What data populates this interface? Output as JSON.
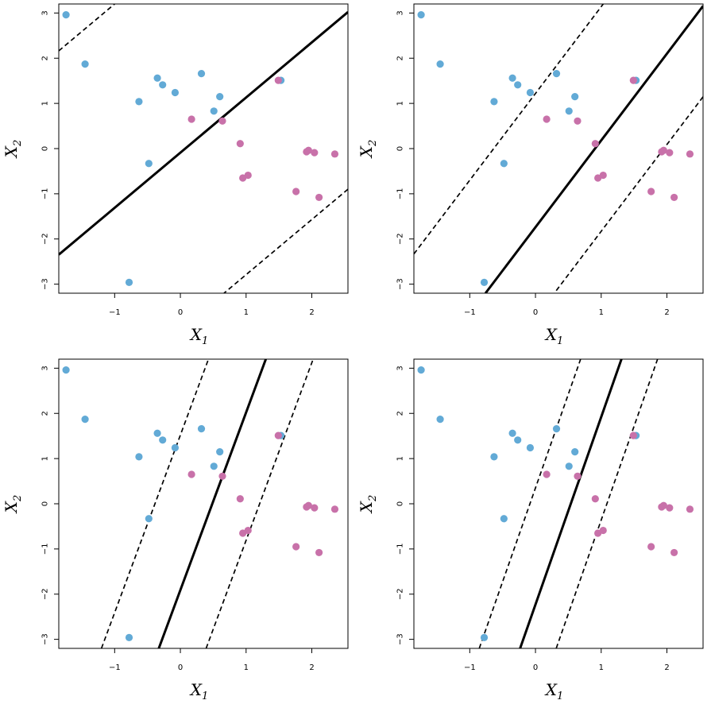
{
  "figure": {
    "xlabel_main": "X",
    "xlabel_sub": "1",
    "ylabel_main": "X",
    "ylabel_sub": "2"
  },
  "colors": {
    "class_blue": "#62aad6",
    "class_pink": "#c871a9",
    "lines": "#000000"
  },
  "chart_data": [
    {
      "type": "scatter",
      "xlim": [
        -1.85,
        2.55
      ],
      "ylim": [
        -3.2,
        3.2
      ],
      "xticks": [
        -1,
        0,
        1,
        2
      ],
      "yticks": [
        -3,
        -2,
        -1,
        0,
        1,
        2,
        3
      ],
      "grid": false,
      "hyperplane": {
        "intercept": -0.09,
        "slope": 1.22
      },
      "margins": [
        {
          "intercept": 4.42,
          "slope": 1.22
        },
        {
          "intercept": -4.01,
          "slope": 1.22
        }
      ],
      "series": [
        {
          "color": "blue",
          "x": [
            -1.74,
            -1.45,
            -0.63,
            -0.35,
            -0.27,
            -0.08,
            0.32,
            0.51,
            0.6,
            1.53,
            -0.48,
            -0.78
          ],
          "y": [
            2.96,
            1.87,
            1.04,
            1.56,
            1.41,
            1.24,
            1.66,
            0.83,
            1.15,
            1.51,
            -0.33,
            -2.96
          ]
        },
        {
          "color": "pink",
          "x": [
            0.17,
            0.64,
            0.91,
            1.49,
            1.92,
            1.95,
            2.04,
            2.35,
            0.95,
            1.03,
            1.76,
            2.11
          ],
          "y": [
            0.65,
            0.61,
            0.11,
            1.51,
            -0.07,
            -0.04,
            -0.09,
            -0.12,
            -0.65,
            -0.59,
            -0.95,
            -1.08
          ]
        }
      ]
    },
    {
      "type": "scatter",
      "xlim": [
        -1.85,
        2.55
      ],
      "ylim": [
        -3.2,
        3.2
      ],
      "xticks": [
        -1,
        0,
        1,
        2
      ],
      "yticks": [
        -3,
        -2,
        -1,
        0,
        1,
        2,
        3
      ],
      "grid": false,
      "hyperplane": {
        "intercept": -1.74,
        "slope": 1.92
      },
      "margins": [
        {
          "intercept": 1.22,
          "slope": 1.92
        },
        {
          "intercept": -3.75,
          "slope": 1.92
        }
      ],
      "series": [
        {
          "color": "blue",
          "x": [
            -1.74,
            -1.45,
            -0.63,
            -0.35,
            -0.27,
            -0.08,
            0.32,
            0.51,
            0.6,
            1.53,
            -0.48,
            -0.78
          ],
          "y": [
            2.96,
            1.87,
            1.04,
            1.56,
            1.41,
            1.24,
            1.66,
            0.83,
            1.15,
            1.51,
            -0.33,
            -2.96
          ]
        },
        {
          "color": "pink",
          "x": [
            0.17,
            0.64,
            0.91,
            1.49,
            1.92,
            1.95,
            2.04,
            2.35,
            0.95,
            1.03,
            1.76,
            2.11
          ],
          "y": [
            0.65,
            0.61,
            0.11,
            1.51,
            -0.07,
            -0.04,
            -0.09,
            -0.12,
            -0.65,
            -0.59,
            -0.95,
            -1.08
          ]
        }
      ]
    },
    {
      "type": "scatter",
      "xlim": [
        -1.85,
        2.55
      ],
      "ylim": [
        -3.2,
        3.2
      ],
      "xticks": [
        -1,
        0,
        1,
        2
      ],
      "yticks": [
        -3,
        -2,
        -1,
        0,
        1,
        2,
        3
      ],
      "grid": false,
      "hyperplane": {
        "intercept": -1.91,
        "slope": 3.93
      },
      "margins": [
        {
          "intercept": 1.52,
          "slope": 3.93
        },
        {
          "intercept": -4.74,
          "slope": 3.93
        }
      ],
      "series": [
        {
          "color": "blue",
          "x": [
            -1.74,
            -1.45,
            -0.63,
            -0.35,
            -0.27,
            -0.08,
            0.32,
            0.51,
            0.6,
            1.53,
            -0.48,
            -0.78
          ],
          "y": [
            2.96,
            1.87,
            1.04,
            1.56,
            1.41,
            1.24,
            1.66,
            0.83,
            1.15,
            1.51,
            -0.33,
            -2.96
          ]
        },
        {
          "color": "pink",
          "x": [
            0.17,
            0.64,
            0.91,
            1.49,
            1.92,
            1.95,
            2.04,
            2.35,
            0.95,
            1.03,
            1.76,
            2.11
          ],
          "y": [
            0.65,
            0.61,
            0.11,
            1.51,
            -0.07,
            -0.04,
            -0.09,
            -0.12,
            -0.65,
            -0.59,
            -0.95,
            -1.08
          ]
        }
      ]
    },
    {
      "type": "scatter",
      "xlim": [
        -1.85,
        2.55
      ],
      "ylim": [
        -3.2,
        3.2
      ],
      "xticks": [
        -1,
        0,
        1,
        2
      ],
      "yticks": [
        -3,
        -2,
        -1,
        0,
        1,
        2,
        3
      ],
      "grid": false,
      "hyperplane": {
        "intercept": -2.23,
        "slope": 4.15
      },
      "margins": [
        {
          "intercept": 0.35,
          "slope": 4.15
        },
        {
          "intercept": -4.51,
          "slope": 4.15
        }
      ],
      "series": [
        {
          "color": "blue",
          "x": [
            -1.74,
            -1.45,
            -0.63,
            -0.35,
            -0.27,
            -0.08,
            0.32,
            0.51,
            0.6,
            1.53,
            -0.48,
            -0.78
          ],
          "y": [
            2.96,
            1.87,
            1.04,
            1.56,
            1.41,
            1.24,
            1.66,
            0.83,
            1.15,
            1.51,
            -0.33,
            -2.96
          ]
        },
        {
          "color": "pink",
          "x": [
            0.17,
            0.64,
            0.91,
            1.49,
            1.92,
            1.95,
            2.04,
            2.35,
            0.95,
            1.03,
            1.76,
            2.11
          ],
          "y": [
            0.65,
            0.61,
            0.11,
            1.51,
            -0.07,
            -0.04,
            -0.09,
            -0.12,
            -0.65,
            -0.59,
            -0.95,
            -1.08
          ]
        }
      ]
    }
  ]
}
